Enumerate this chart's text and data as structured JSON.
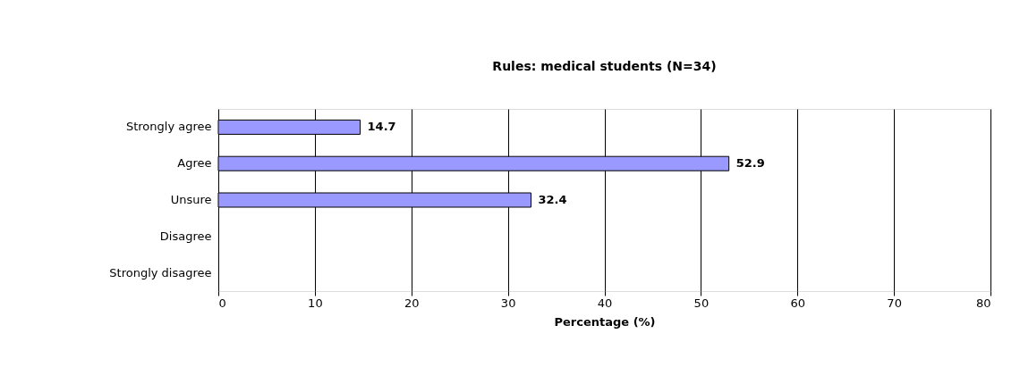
{
  "chart_data": {
    "type": "bar",
    "orientation": "horizontal",
    "title": "Rules: medical students (N=34)",
    "categories": [
      "Strongly agree",
      "Agree",
      "Unsure",
      "Disagree",
      "Strongly disagree"
    ],
    "values": [
      14.7,
      52.9,
      32.4,
      null,
      null
    ],
    "color": "#9999ff",
    "xlabel": "Percentage (%)",
    "xlim": [
      0,
      80
    ],
    "xticks": [
      0,
      10,
      20,
      30,
      40,
      50,
      60,
      70,
      80
    ],
    "grid": "x",
    "data_labels": true
  }
}
